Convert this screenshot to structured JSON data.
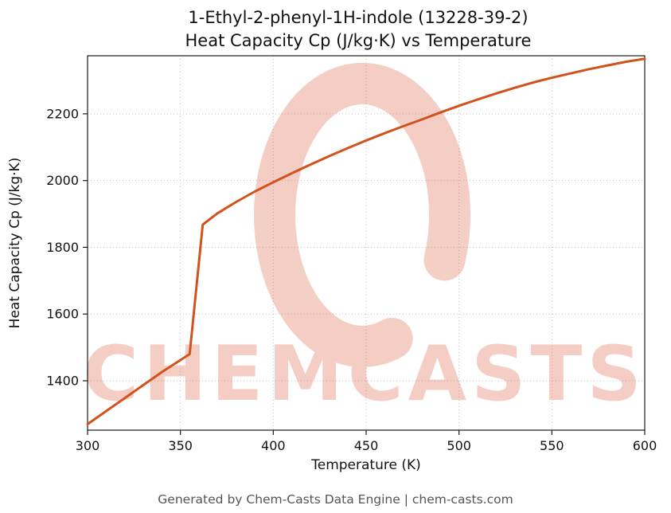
{
  "page": {
    "footer": "Generated by Chem-Casts Data Engine | chem-casts.com"
  },
  "watermark": {
    "text": "CHEMCASTS",
    "color": "#d9512e",
    "opacity": 0.28
  },
  "chart_data": {
    "type": "line",
    "title_line1": "1-Ethyl-2-phenyl-1H-indole (13228-39-2)",
    "title_line2": "Heat Capacity Cp (J/kg·K) vs Temperature",
    "xlabel": "Temperature (K)",
    "ylabel": "Heat Capacity Cp (J/kg·K)",
    "xlim": [
      300,
      600
    ],
    "ylim": [
      1252,
      2374
    ],
    "x_ticks": [
      300,
      350,
      400,
      450,
      500,
      550,
      600
    ],
    "y_ticks": [
      1400,
      1600,
      1800,
      2000,
      2200
    ],
    "grid": true,
    "legend": "none",
    "line_color": "#d2521e",
    "line_width": 3,
    "series": [
      {
        "name": "Heat Capacity Cp",
        "x": [
          300,
          310,
          320,
          330,
          340,
          350,
          355,
          362,
          370,
          380,
          390,
          400,
          410,
          420,
          430,
          440,
          450,
          460,
          470,
          480,
          490,
          500,
          510,
          520,
          530,
          540,
          550,
          560,
          570,
          580,
          590,
          600
        ],
        "y": [
          1270,
          1309,
          1348,
          1387,
          1426,
          1462,
          1480,
          1868,
          1902,
          1936,
          1967,
          1995,
          2022,
          2048,
          2073,
          2097,
          2120,
          2142,
          2163,
          2183,
          2204,
          2224,
          2243,
          2261,
          2278,
          2294,
          2308,
          2321,
          2334,
          2345,
          2356,
          2365
        ]
      }
    ]
  }
}
